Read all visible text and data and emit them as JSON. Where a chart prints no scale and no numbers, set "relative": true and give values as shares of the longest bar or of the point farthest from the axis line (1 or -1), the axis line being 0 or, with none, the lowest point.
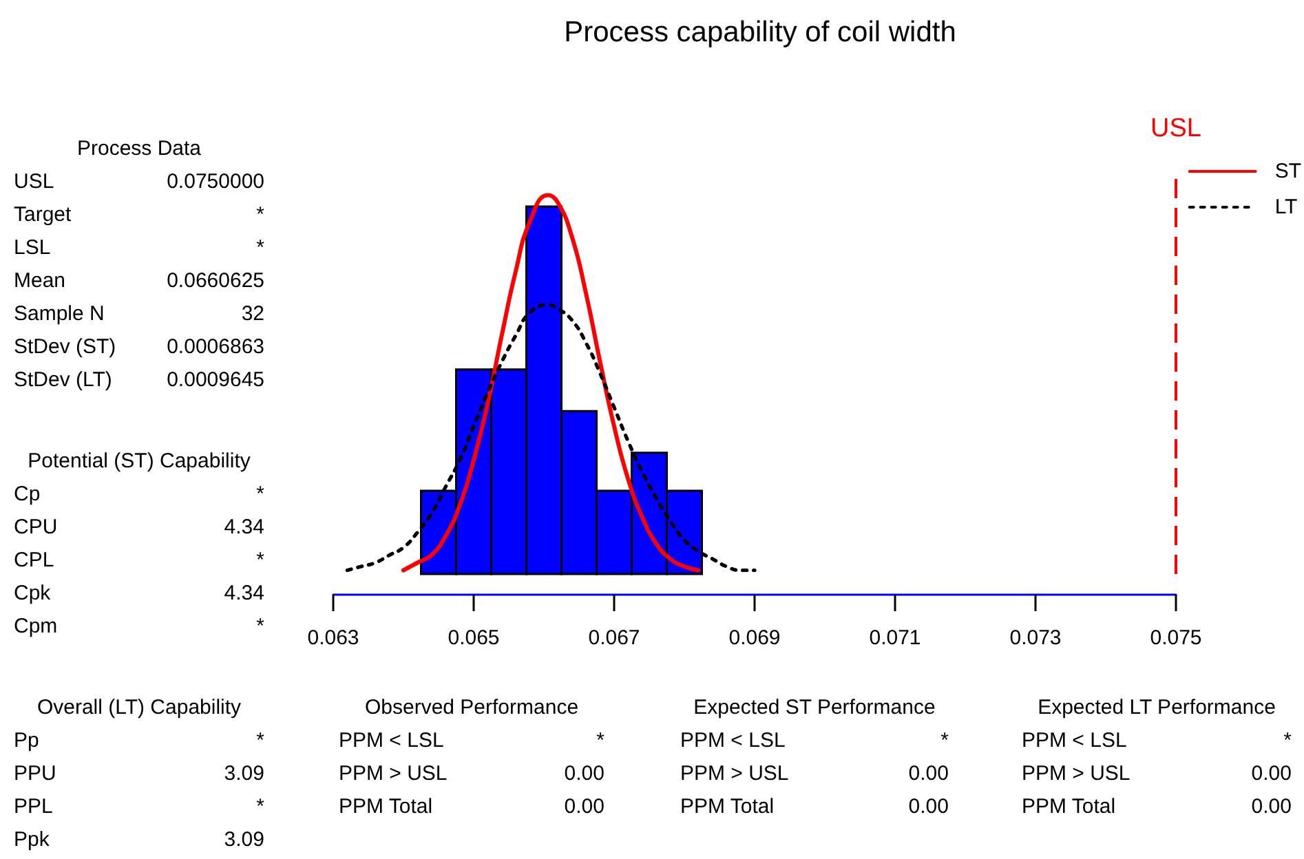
{
  "chart_data": {
    "type": "histogram",
    "title": "Process capability of coil width",
    "relative": true,
    "xlim": [
      0.063,
      0.075
    ],
    "xticks": [
      0.063,
      0.065,
      0.067,
      0.069,
      0.071,
      0.073,
      0.075
    ],
    "series": [
      {
        "color": "#0000ff",
        "bins": [
          0.06425,
          0.06475,
          0.06525,
          0.06575,
          0.06625,
          0.06675,
          0.06725,
          0.06775,
          0.06825
        ],
        "values": [
          0.22,
          0.54,
          0.54,
          0.97,
          0.43,
          0.22,
          0.32,
          0.22
        ]
      },
      {
        "name": "ST",
        "type": "line",
        "color": "#ff0000",
        "line_style": "solid",
        "x": [
          0.064,
          0.0642,
          0.0644,
          0.0646,
          0.0648,
          0.065,
          0.0652,
          0.0654,
          0.0656,
          0.0658,
          0.06606,
          0.0662,
          0.0664,
          0.0666,
          0.0668,
          0.067,
          0.0672,
          0.0674,
          0.0676,
          0.0678,
          0.068,
          0.0682
        ],
        "values": [
          0.01,
          0.03,
          0.05,
          0.1,
          0.18,
          0.3,
          0.45,
          0.63,
          0.8,
          0.93,
          1.0,
          0.98,
          0.89,
          0.74,
          0.56,
          0.39,
          0.25,
          0.15,
          0.08,
          0.04,
          0.02,
          0.01
        ]
      },
      {
        "name": "LT",
        "type": "line",
        "color": "#000000",
        "line_style": "dotted",
        "x": [
          0.0632,
          0.0634,
          0.0636,
          0.0638,
          0.064,
          0.0642,
          0.0644,
          0.0646,
          0.0648,
          0.065,
          0.0652,
          0.0654,
          0.0656,
          0.0658,
          0.06606,
          0.0662,
          0.0664,
          0.0666,
          0.0668,
          0.067,
          0.0672,
          0.0674,
          0.0676,
          0.0678,
          0.068,
          0.0682,
          0.0684,
          0.0686,
          0.0688,
          0.069
        ],
        "values": [
          0.01,
          0.02,
          0.03,
          0.05,
          0.07,
          0.11,
          0.16,
          0.23,
          0.3,
          0.39,
          0.48,
          0.56,
          0.63,
          0.69,
          0.71,
          0.7,
          0.67,
          0.61,
          0.53,
          0.44,
          0.35,
          0.27,
          0.2,
          0.14,
          0.09,
          0.06,
          0.04,
          0.02,
          0.01,
          0.01
        ]
      }
    ],
    "ref_lines": [
      {
        "axis": "x",
        "value": 0.075,
        "label": "USL",
        "color": "#ff0000",
        "line_style": "dashed"
      }
    ],
    "legend": "top right",
    "marker": "none",
    "annotations": [
      "Process Data",
      "USL",
      "0.0750000",
      "Target",
      "*",
      "LSL",
      "*",
      "Mean",
      "0.0660625",
      "Sample N",
      "32",
      "StDev (ST)",
      "0.0006863",
      "StDev (LT)",
      "0.0009645",
      "Potential (ST) Capability",
      "Cp",
      "*",
      "CPU",
      "4.34",
      "CPL",
      "*",
      "Cpk",
      "4.34",
      "Cpm",
      "*",
      "Overall (LT) Capability",
      "Pp",
      "*",
      "PPU",
      "3.09",
      "PPL",
      "*",
      "Ppk",
      "3.09",
      "Observed Performance",
      "PPM < LSL",
      "*",
      "PPM > USL",
      "0.00",
      "PPM Total",
      "0.00",
      "Expected ST Performance",
      "PPM < LSL",
      "*",
      "PPM > USL",
      "0.00",
      "PPM Total",
      "0.00",
      "Expected LT Performance",
      "PPM < LSL",
      "*",
      "PPM > USL",
      "0.00",
      "PPM Total",
      "0.00"
    ]
  }
}
